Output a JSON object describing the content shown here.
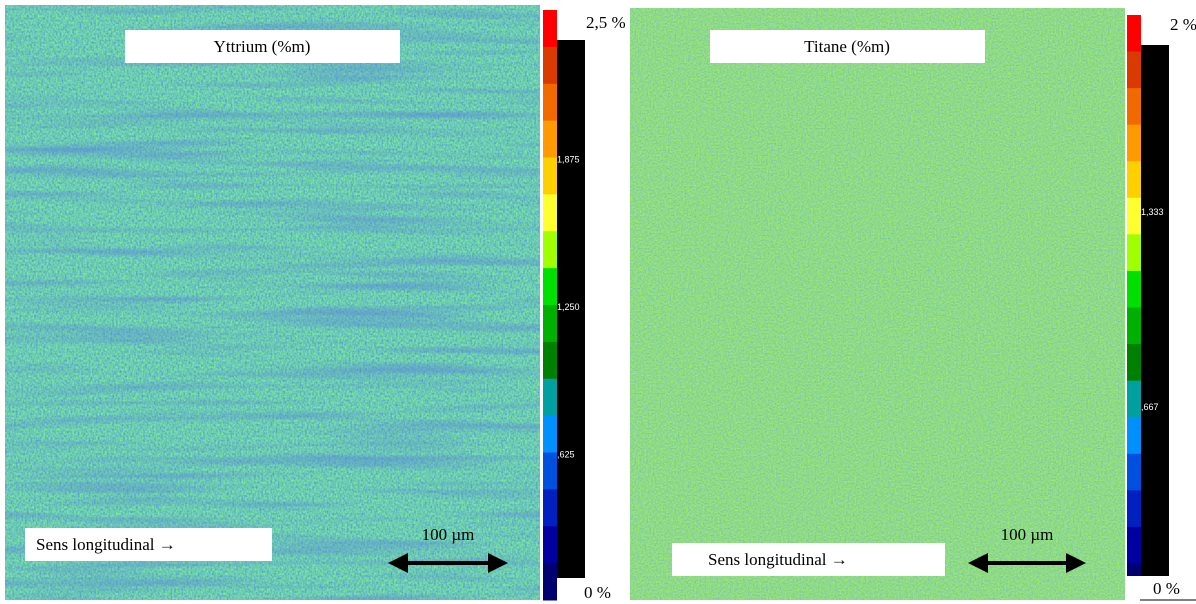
{
  "panels": [
    {
      "title": "Yttrium (%m)",
      "direction_label": "Sens longitudinal →",
      "scale_label": "100 µm",
      "colorbar": {
        "max_label": "2,5 %",
        "min_label": "0 %",
        "ticks": [
          "1,875",
          "1,250",
          ",625"
        ]
      }
    },
    {
      "title": "Titane (%m)",
      "direction_label": "Sens longitudinal →",
      "scale_label": "100 µm",
      "colorbar": {
        "max_label": "2 %",
        "min_label": "0 %",
        "ticks": [
          "1,333",
          ",667"
        ]
      }
    }
  ]
}
